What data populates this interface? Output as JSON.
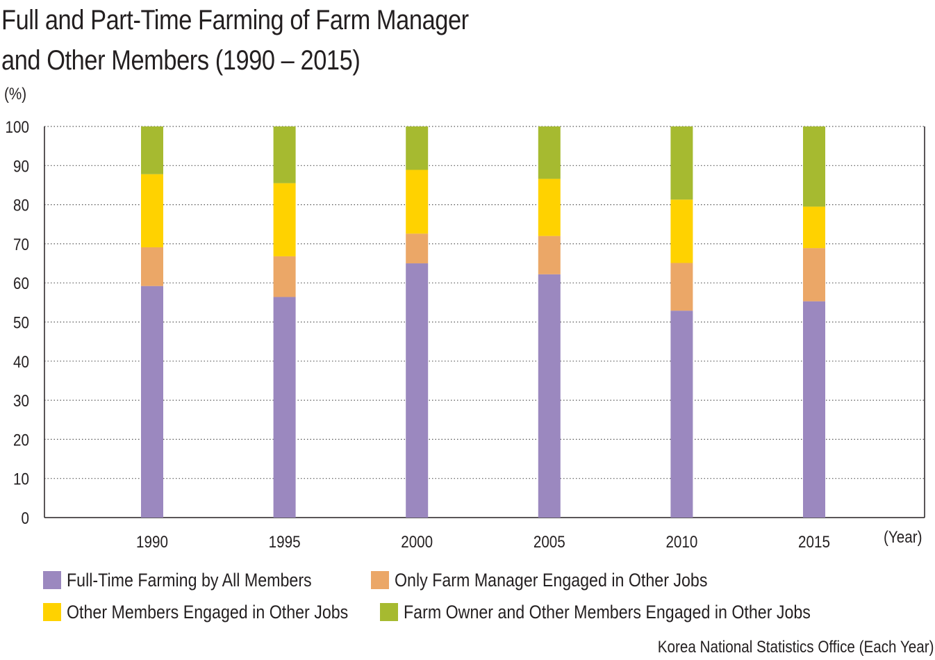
{
  "title_lines": [
    "Full and Part-Time Farming of Farm Manager",
    "and Other Members (1990 – 2015)"
  ],
  "y_unit": "(%)",
  "x_unit": "(Year)",
  "source": "Korea National Statistics Office (Each Year)",
  "chart_data": {
    "type": "bar",
    "stacked": true,
    "title": "Full and Part-Time Farming of Farm Manager and Other Members (1990 – 2015)",
    "xlabel": "(Year)",
    "ylabel": "(%)",
    "ylim": [
      0,
      100
    ],
    "yticks": [
      0,
      10,
      20,
      30,
      40,
      50,
      60,
      70,
      80,
      90,
      100
    ],
    "grid": true,
    "legend_position": "bottom",
    "categories": [
      "1990",
      "1995",
      "2000",
      "2005",
      "2010",
      "2015"
    ],
    "series": [
      {
        "name": "Full-Time Farming by All Members",
        "color": "#9b88bf",
        "values": [
          59.2,
          56.4,
          65.0,
          62.2,
          52.9,
          55.3
        ]
      },
      {
        "name": "Only Farm Manager Engaged in Other Jobs",
        "color": "#eba767",
        "values": [
          9.9,
          10.4,
          7.6,
          9.8,
          12.2,
          13.6
        ]
      },
      {
        "name": "Other Members Engaged in Other Jobs",
        "color": "#ffd200",
        "values": [
          18.7,
          18.7,
          16.3,
          14.6,
          16.2,
          10.6
        ]
      },
      {
        "name": "Farm Owner and Other Members Engaged in Other Jobs",
        "color": "#a6ba30",
        "values": [
          12.2,
          14.5,
          11.1,
          13.4,
          18.7,
          20.5
        ]
      }
    ]
  }
}
